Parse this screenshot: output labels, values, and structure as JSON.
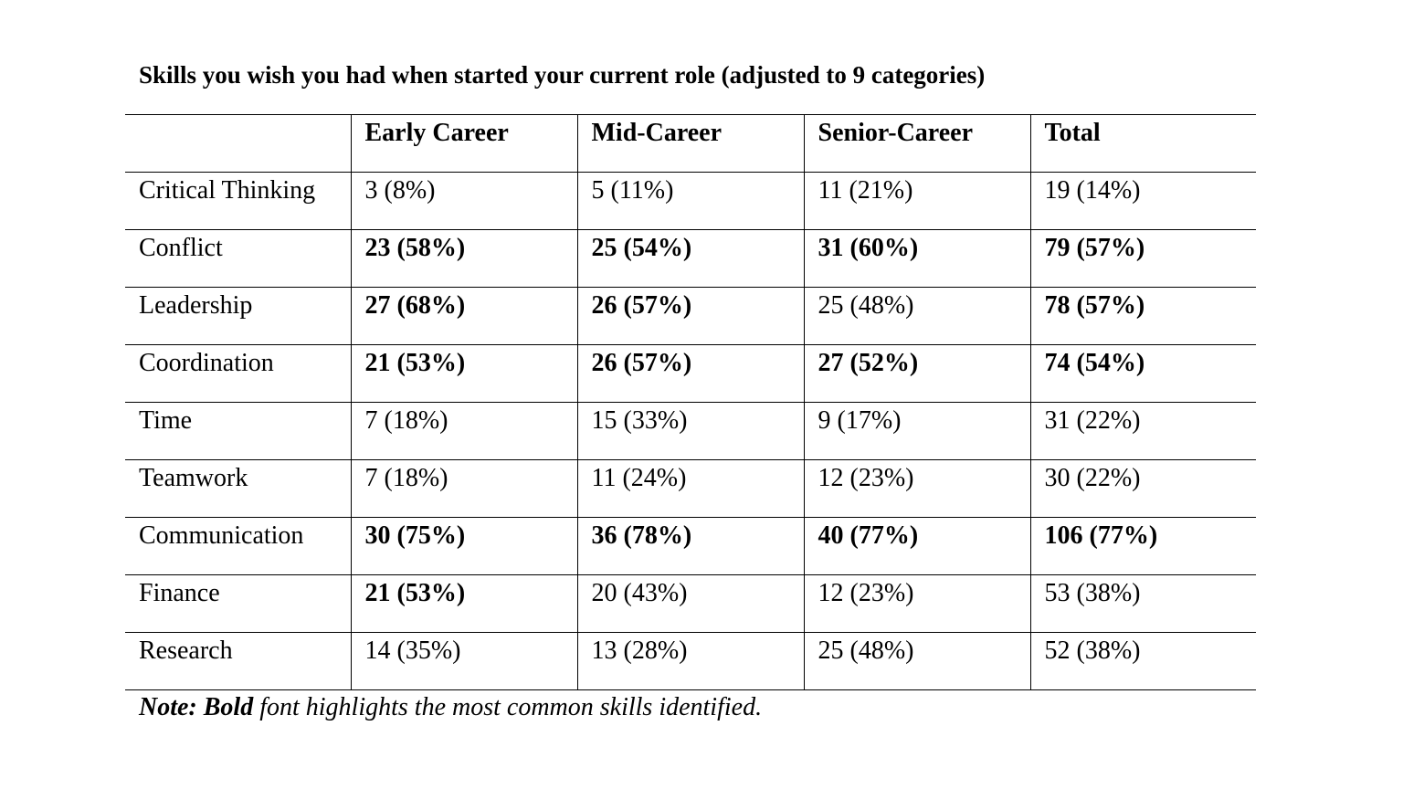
{
  "title": "Skills you wish you had when started your current role (adjusted to 9 categories)",
  "table": {
    "headers": [
      "",
      "Early Career",
      "Mid-Career",
      "Senior-Career",
      "Total"
    ],
    "rows": [
      {
        "label": "Critical Thinking",
        "cells": [
          {
            "text": "3 (8%)",
            "bold": false
          },
          {
            "text": "5 (11%)",
            "bold": false
          },
          {
            "text": "11 (21%)",
            "bold": false
          },
          {
            "text": "19 (14%)",
            "bold": false
          }
        ]
      },
      {
        "label": "Conflict",
        "cells": [
          {
            "text": "23 (58%)",
            "bold": true
          },
          {
            "text": "25 (54%)",
            "bold": true
          },
          {
            "text": "31 (60%)",
            "bold": true
          },
          {
            "text": "79 (57%)",
            "bold": true
          }
        ]
      },
      {
        "label": "Leadership",
        "cells": [
          {
            "text": "27 (68%)",
            "bold": true
          },
          {
            "text": "26 (57%)",
            "bold": true
          },
          {
            "text": "25 (48%)",
            "bold": false
          },
          {
            "text": "78 (57%)",
            "bold": true
          }
        ]
      },
      {
        "label": "Coordination",
        "cells": [
          {
            "text": "21 (53%)",
            "bold": true
          },
          {
            "text": "26 (57%)",
            "bold": true
          },
          {
            "text": "27 (52%)",
            "bold": true
          },
          {
            "text": "74 (54%)",
            "bold": true
          }
        ]
      },
      {
        "label": "Time",
        "cells": [
          {
            "text": "7 (18%)",
            "bold": false
          },
          {
            "text": "15 (33%)",
            "bold": false
          },
          {
            "text": "9 (17%)",
            "bold": false
          },
          {
            "text": "31 (22%)",
            "bold": false
          }
        ]
      },
      {
        "label": "Teamwork",
        "cells": [
          {
            "text": "7 (18%)",
            "bold": false
          },
          {
            "text": "11 (24%)",
            "bold": false
          },
          {
            "text": "12 (23%)",
            "bold": false
          },
          {
            "text": "30 (22%)",
            "bold": false
          }
        ]
      },
      {
        "label": "Communication",
        "cells": [
          {
            "text": "30 (75%)",
            "bold": true
          },
          {
            "text": "36 (78%)",
            "bold": true
          },
          {
            "text": "40 (77%)",
            "bold": true
          },
          {
            "text": "106 (77%)",
            "bold": true
          }
        ]
      },
      {
        "label": "Finance",
        "cells": [
          {
            "text": "21 (53%)",
            "bold": true
          },
          {
            "text": "20 (43%)",
            "bold": false
          },
          {
            "text": "12 (23%)",
            "bold": false
          },
          {
            "text": "53 (38%)",
            "bold": false
          }
        ]
      },
      {
        "label": "Research",
        "cells": [
          {
            "text": "14 (35%)",
            "bold": false
          },
          {
            "text": "13 (28%)",
            "bold": false
          },
          {
            "text": "25 (48%)",
            "bold": false
          },
          {
            "text": "52 (38%)",
            "bold": false
          }
        ]
      }
    ]
  },
  "note": {
    "prefix": "Note: Bold",
    "text": " font highlights the most common skills identified."
  }
}
